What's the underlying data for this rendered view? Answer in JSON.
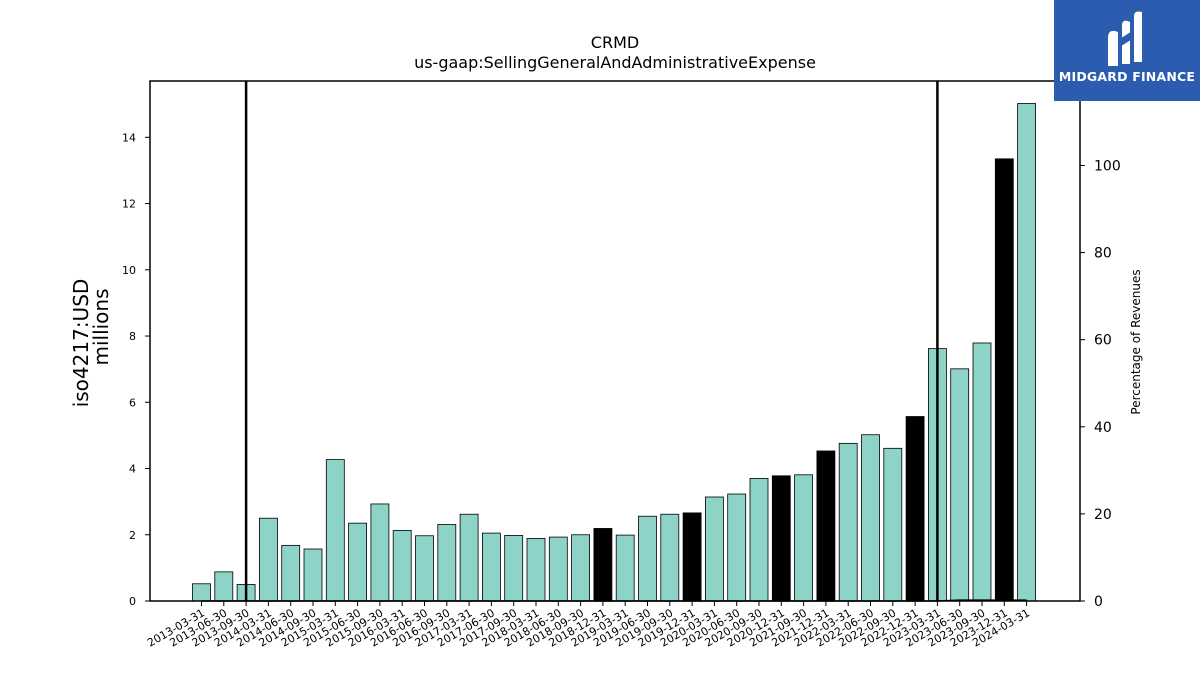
{
  "chart_data": {
    "type": "bar",
    "title": "CRMD",
    "subtitle": "us-gaap:SellingGeneralAndAdministrativeExpense",
    "ylabel": "iso4217:USD",
    "ylabel_units": "millions",
    "y2label": "Percentage of Revenues",
    "ylim": [
      0,
      15.7
    ],
    "y2lim": [
      0,
      119.4
    ],
    "yticks": [
      0,
      2,
      4,
      6,
      8,
      10,
      12,
      14
    ],
    "y2ticks": [
      0,
      20,
      40,
      60,
      80,
      100
    ],
    "grid": false,
    "legend": "none",
    "bar_color": "#8dd3c7",
    "highlight_color": "#000000",
    "categories": [
      "2013-03-31",
      "2013-06-30",
      "2013-09-30",
      "2014-03-31",
      "2014-06-30",
      "2014-09-30",
      "2015-03-31",
      "2015-06-30",
      "2015-09-30",
      "2016-03-31",
      "2016-06-30",
      "2016-09-30",
      "2017-03-31",
      "2017-06-30",
      "2017-09-30",
      "2018-03-31",
      "2018-06-30",
      "2018-09-30",
      "2018-12-31",
      "2019-03-31",
      "2019-06-30",
      "2019-09-30",
      "2019-12-31",
      "2020-03-31",
      "2020-06-30",
      "2020-09-30",
      "2020-12-31",
      "2021-09-30",
      "2021-12-31",
      "2022-03-31",
      "2022-06-30",
      "2022-09-30",
      "2022-12-31",
      "2023-03-31",
      "2023-06-30",
      "2023-09-30",
      "2023-12-31",
      "2024-03-31"
    ],
    "values": [
      0.52,
      0.88,
      0.5,
      2.5,
      1.68,
      1.57,
      4.27,
      2.35,
      2.93,
      2.13,
      1.97,
      2.31,
      2.62,
      2.05,
      1.98,
      1.89,
      1.93,
      2.0,
      2.19,
      1.99,
      2.56,
      2.62,
      2.66,
      3.14,
      3.23,
      3.7,
      3.78,
      3.81,
      4.53,
      4.76,
      5.02,
      4.61,
      5.57,
      7.62,
      7.01,
      7.79,
      13.35,
      15.02
    ],
    "highlighted": [
      "2018-12-31",
      "2019-12-31",
      "2020-12-31",
      "2021-12-31",
      "2022-12-31",
      "2023-12-31"
    ],
    "percentage_of_revenues": [
      0.0,
      0.0,
      0.0,
      0.0,
      0.0,
      0.0,
      0.0,
      0.0,
      0.0,
      0.0,
      0.0,
      0.0,
      0.0,
      0.0,
      0.0,
      0.0,
      0.0,
      0.0,
      0.0,
      0.0,
      0.0,
      0.0,
      0.0,
      0.0,
      0.0,
      0.0,
      0.0,
      0.0,
      0.0,
      0.0,
      0.0,
      0.0,
      0.0,
      0.0,
      0.2,
      0.2,
      0.2,
      0.2
    ],
    "vertical_markers": [
      "2013-09-30",
      "2023-03-31"
    ]
  },
  "logo": {
    "text": "MIDGARD FINANCE",
    "bg": "#2b5caf"
  }
}
